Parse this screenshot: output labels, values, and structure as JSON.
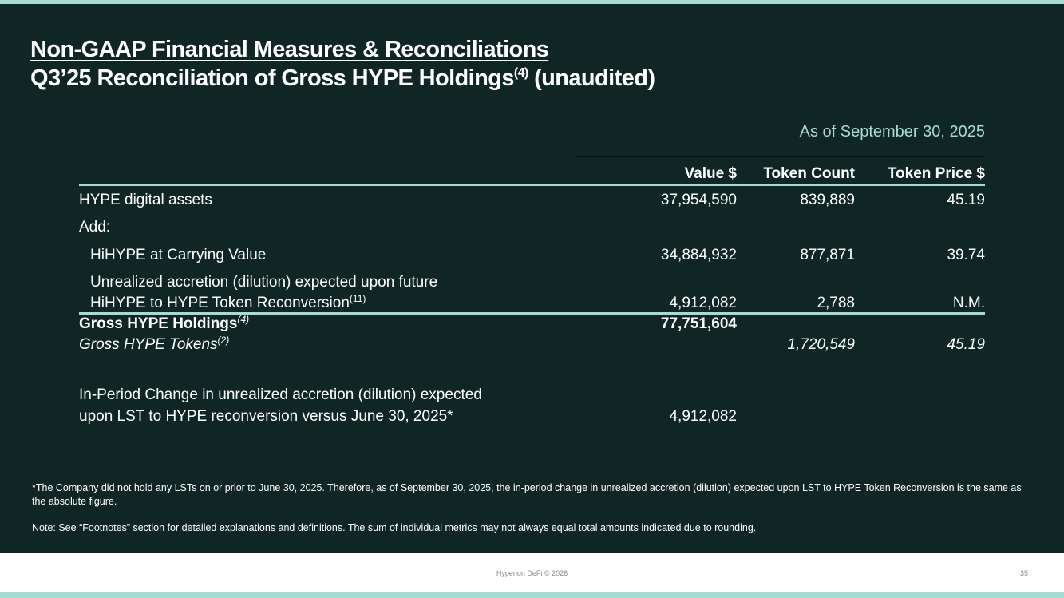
{
  "title": {
    "line1": "Non-GAAP Financial Measures & Reconciliations",
    "line2": "Q3’25 Reconciliation of Gross HYPE Holdings",
    "line2_sup": "(4)",
    "line2_suffix": " (unaudited)"
  },
  "as_of": "As of September 30, 2025",
  "table": {
    "headers": {
      "value": "Value $",
      "token_count": "Token Count",
      "token_price": "Token Price $"
    },
    "rows": {
      "hype_digital_assets": {
        "label": "HYPE digital assets",
        "value": "37,954,590",
        "count": "839,889",
        "price": "45.19"
      },
      "add": {
        "label": "Add:"
      },
      "hihype": {
        "label": "HiHYPE at Carrying Value",
        "value": "34,884,932",
        "count": "877,871",
        "price": "39.74"
      },
      "unrealized": {
        "label_line1": "Unrealized accretion (dilution) expected upon future",
        "label_line2": "HiHYPE to HYPE Token Reconversion",
        "label_sup": "(11)",
        "value": "4,912,082",
        "count": "2,788",
        "price": "N.M."
      },
      "gross_holdings": {
        "label": "Gross HYPE Holdings",
        "label_sup": "(4)",
        "value": "77,751,604"
      },
      "gross_tokens": {
        "label": "Gross HYPE Tokens",
        "label_sup": "(2)",
        "count": "1,720,549",
        "price": "45.19"
      },
      "in_period": {
        "label_line1": "In-Period Change in unrealized accretion (dilution) expected",
        "label_line2": "upon LST to HYPE reconversion versus June 30, 2025*",
        "value": "4,912,082"
      }
    }
  },
  "footnotes": {
    "note1": "*The Company did not hold any LSTs on or prior to June 30, 2025. Therefore, as of September 30, 2025, the in-period change in unrealized accretion (dilution) expected upon LST to HYPE Token Reconversion is the same as the absolute figure.",
    "note2": "Note: See “Footnotes” section for detailed explanations and definitions. The sum of individual metrics may not always equal total amounts indicated due to rounding."
  },
  "footer": {
    "brand": "Hyperion DeFi © 2026",
    "page": "35"
  },
  "colors": {
    "background": "#0f2624",
    "accent": "#a6dbd2",
    "text": "#ffffff"
  }
}
